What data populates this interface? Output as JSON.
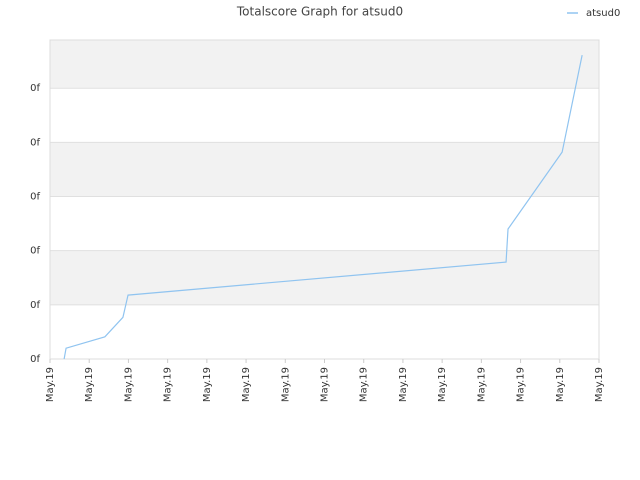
{
  "chart_data": {
    "type": "line",
    "title": "Totalscore Graph for atsud0",
    "x": [
      0.36,
      0.41,
      1.4,
      1.86,
      1.99,
      11.63,
      11.68,
      13.06,
      13.57
    ],
    "series": [
      {
        "name": "atsud0",
        "color": "#90c4f0",
        "values": [
          0,
          0.2,
          0.41,
          0.77,
          1.18,
          1.79,
          2.4,
          3.82,
          5.61
        ]
      }
    ],
    "xlim": [
      0,
      14
    ],
    "xticks": [
      {
        "value": 0,
        "label": "May.19"
      },
      {
        "value": 1,
        "label": "May.19"
      },
      {
        "value": 2,
        "label": "May.19"
      },
      {
        "value": 3,
        "label": "May.19"
      },
      {
        "value": 4,
        "label": "May.19"
      },
      {
        "value": 5,
        "label": "May.19"
      },
      {
        "value": 6,
        "label": "May.19"
      },
      {
        "value": 7,
        "label": "May.19"
      },
      {
        "value": 8,
        "label": "May.19"
      },
      {
        "value": 9,
        "label": "May.19"
      },
      {
        "value": 10,
        "label": "May.19"
      },
      {
        "value": 11,
        "label": "May.19"
      },
      {
        "value": 12,
        "label": "May.19"
      },
      {
        "value": 13,
        "label": "May.19"
      },
      {
        "value": 14,
        "label": "May.19"
      }
    ],
    "ylim": [
      0,
      5.89
    ],
    "yticks": [
      {
        "value": 0,
        "label": "0f"
      },
      {
        "value": 1,
        "label": "0f"
      },
      {
        "value": 2,
        "label": "0f"
      },
      {
        "value": 3,
        "label": "0f"
      },
      {
        "value": 4,
        "label": "0f"
      },
      {
        "value": 5,
        "label": "0f"
      }
    ],
    "grid": true,
    "legend": "top-right"
  }
}
